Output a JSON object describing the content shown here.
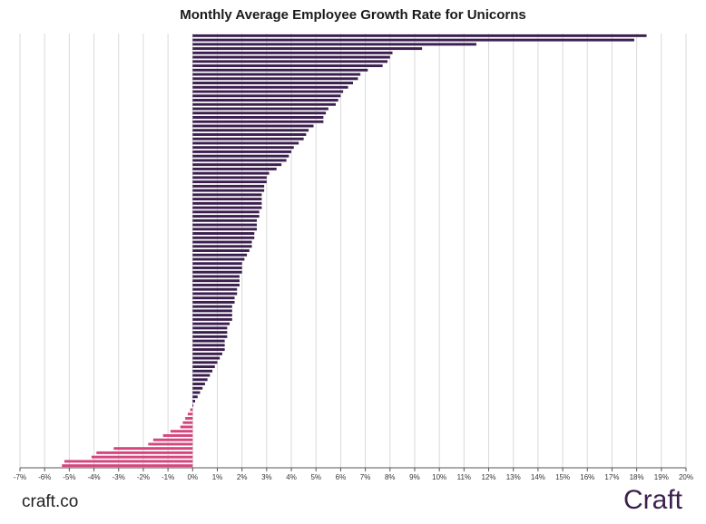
{
  "chart_data": {
    "type": "bar",
    "orientation": "horizontal",
    "title": "Monthly Average Employee Growth Rate for Unicorns",
    "xlabel": "",
    "ylabel": "",
    "xlim": [
      -7,
      20
    ],
    "x_ticks": [
      "-7%",
      "-6%",
      "-5%",
      "-4%",
      "-3%",
      "-2%",
      "-1%",
      "0%",
      "1%",
      "2%",
      "3%",
      "4%",
      "5%",
      "6%",
      "7%",
      "8%",
      "9%",
      "10%",
      "11%",
      "12%",
      "13%",
      "14%",
      "15%",
      "16%",
      "17%",
      "18%",
      "19%",
      "20%"
    ],
    "grid": true,
    "colors": {
      "positive": "#3b1f4e",
      "negative": "#d4467e"
    },
    "values": [
      18.4,
      17.9,
      11.5,
      9.3,
      8.1,
      8.0,
      7.9,
      7.7,
      7.1,
      6.8,
      6.7,
      6.5,
      6.3,
      6.1,
      6.0,
      5.9,
      5.8,
      5.5,
      5.4,
      5.3,
      5.3,
      4.9,
      4.7,
      4.6,
      4.5,
      4.3,
      4.1,
      4.0,
      3.9,
      3.8,
      3.6,
      3.4,
      3.1,
      3.0,
      3.0,
      2.9,
      2.9,
      2.8,
      2.8,
      2.8,
      2.8,
      2.7,
      2.7,
      2.6,
      2.6,
      2.6,
      2.5,
      2.5,
      2.4,
      2.4,
      2.3,
      2.2,
      2.1,
      2.0,
      2.0,
      2.0,
      1.9,
      1.9,
      1.9,
      1.8,
      1.8,
      1.7,
      1.7,
      1.6,
      1.6,
      1.6,
      1.6,
      1.5,
      1.4,
      1.4,
      1.4,
      1.3,
      1.3,
      1.3,
      1.2,
      1.1,
      1.0,
      0.9,
      0.8,
      0.7,
      0.6,
      0.5,
      0.4,
      0.3,
      0.2,
      0.1,
      0.0,
      -0.1,
      -0.2,
      -0.3,
      -0.4,
      -0.5,
      -0.9,
      -1.2,
      -1.6,
      -1.8,
      -3.2,
      -3.9,
      -4.1,
      -5.2,
      -5.3
    ]
  },
  "footer": {
    "left_text": "craft.co",
    "right_text": "Craft"
  }
}
